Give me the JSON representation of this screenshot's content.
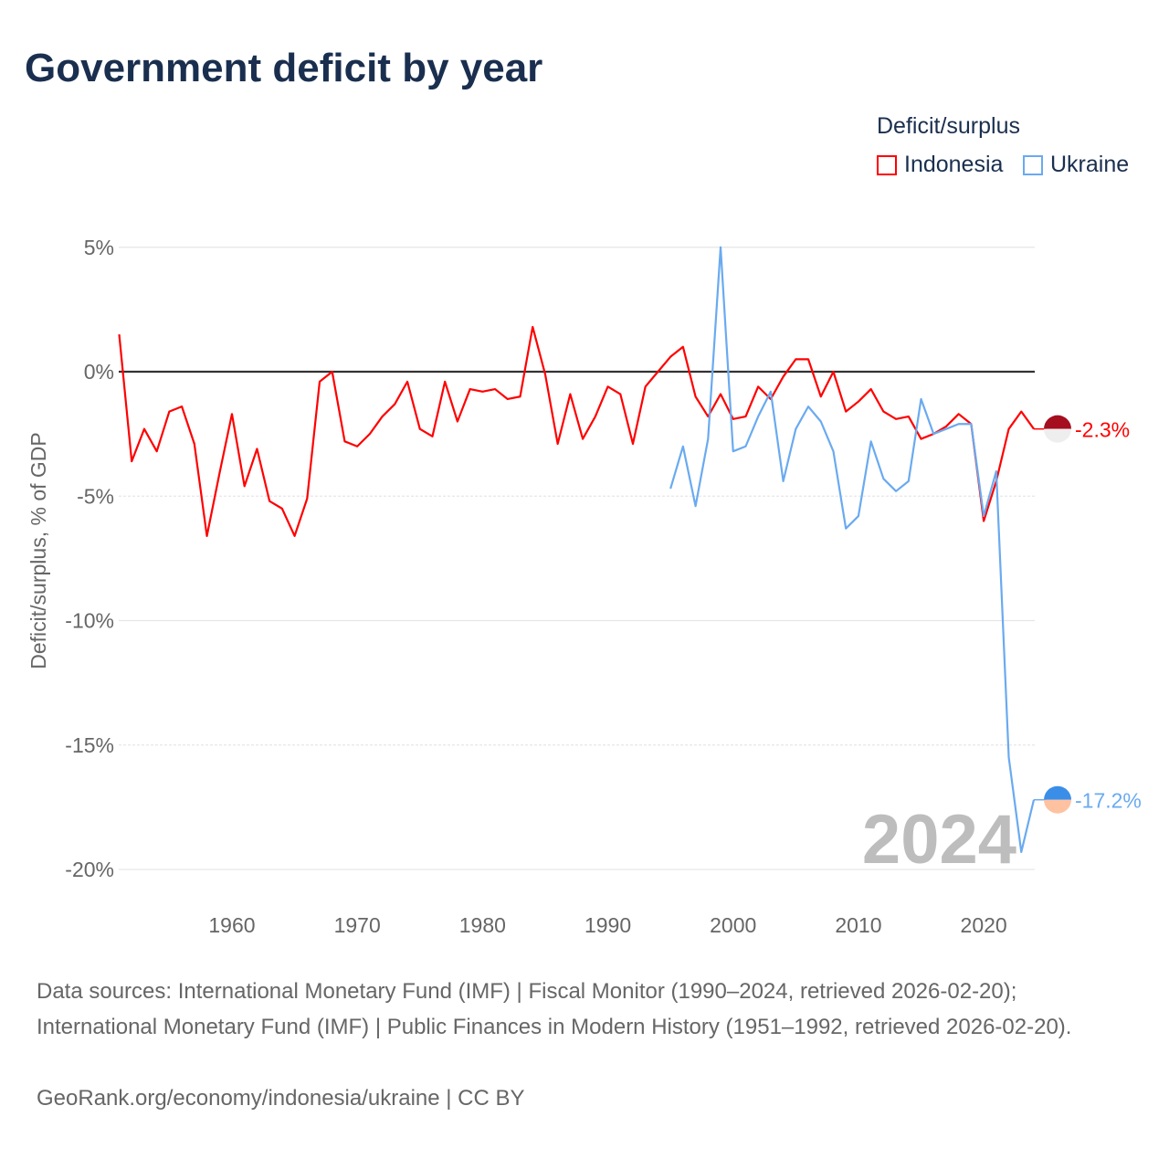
{
  "title": "Government deficit by year",
  "legend": {
    "title": "Deficit/surplus",
    "items": [
      {
        "name": "Indonesia",
        "color": "#ff0000"
      },
      {
        "name": "Ukraine",
        "color": "#6aaaf0"
      }
    ]
  },
  "footer": {
    "sources": "Data sources: International Monetary Fund (IMF) | Fiscal Monitor (1990–2024, retrieved 2026-02-20); International Monetary Fund (IMF) | Public Finances in Modern History (1951–1992, retrieved 2026-02-20).",
    "credit": "GeoRank.org/economy/indonesia/ukraine | CC BY"
  },
  "chart_data": {
    "type": "line",
    "title": "Government deficit by year",
    "xlabel": "",
    "ylabel": "Deficit/surplus, % of GDP",
    "xlim": [
      1951,
      2024
    ],
    "ylim": [
      -20,
      5
    ],
    "xticks": [
      1960,
      1970,
      1980,
      1990,
      2000,
      2010,
      2020
    ],
    "yticks": [
      5,
      0,
      -5,
      -10,
      -15,
      -20
    ],
    "ytick_labels": [
      "5%",
      "0%",
      "-5%",
      "-10%",
      "-15%",
      "-20%"
    ],
    "year_label": "2024",
    "series": [
      {
        "name": "Indonesia",
        "color": "#ff0000",
        "end_label": "-2.3%",
        "start_year": 1951,
        "values": [
          1.5,
          -3.6,
          -2.3,
          -3.2,
          -1.6,
          -1.4,
          -2.9,
          -6.6,
          -4.1,
          -1.7,
          -4.6,
          -3.1,
          -5.2,
          -5.5,
          -6.6,
          -5.1,
          -0.4,
          0.0,
          -2.8,
          -3.0,
          -2.5,
          -1.8,
          -1.3,
          -0.4,
          -2.3,
          -2.6,
          -0.4,
          -2.0,
          -0.7,
          -0.8,
          -0.7,
          -1.1,
          -1.0,
          1.8,
          -0.1,
          -2.9,
          -0.9,
          -2.7,
          -1.8,
          -0.6,
          -0.9,
          -2.9,
          -0.6,
          0.0,
          0.6,
          1.0,
          -1.0,
          -1.8,
          -0.9,
          -1.9,
          -1.8,
          -0.6,
          -1.1,
          -0.2,
          0.5,
          0.5,
          -1.0,
          0.0,
          -1.6,
          -1.2,
          -0.7,
          -1.6,
          -1.9,
          -1.8,
          -2.7,
          -2.5,
          -2.2,
          -1.7,
          -2.1,
          -6.0,
          -4.4,
          -2.3,
          -1.6,
          -2.3
        ]
      },
      {
        "name": "Ukraine",
        "color": "#6aaaf0",
        "end_label": "-17.2%",
        "start_year": 1995,
        "values": [
          -4.7,
          -3.0,
          -5.4,
          -2.7,
          5.0,
          -3.2,
          -3.0,
          -1.8,
          -0.8,
          -4.4,
          -2.3,
          -1.4,
          -2.0,
          -3.2,
          -6.3,
          -5.8,
          -2.8,
          -4.3,
          -4.8,
          -4.4,
          -1.1,
          -2.5,
          -2.3,
          -2.1,
          -2.1,
          -5.8,
          -4.0,
          -15.5,
          -19.3,
          -17.2
        ]
      }
    ]
  }
}
